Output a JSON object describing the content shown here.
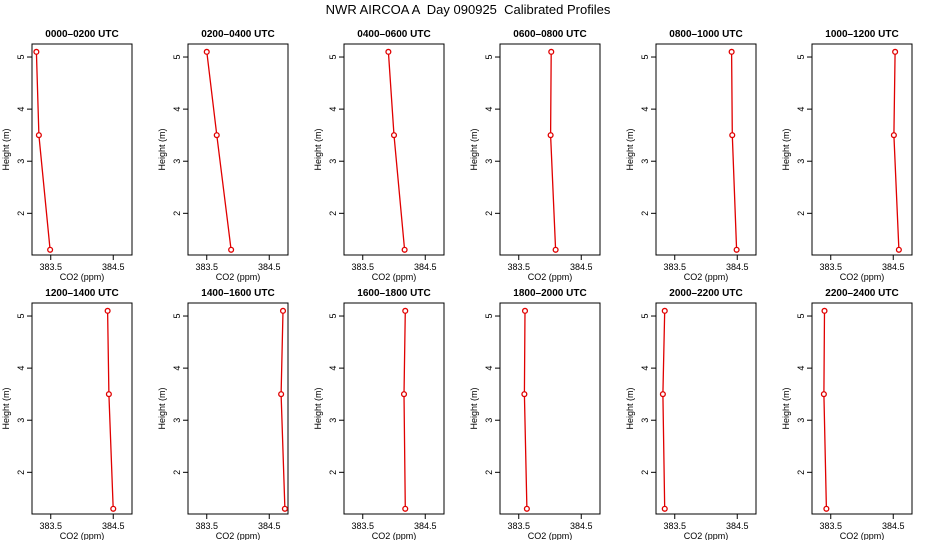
{
  "title": "NWR AIRCOA A  Day 090925  Calibrated Profiles",
  "chart_data": {
    "type": "line",
    "xlabel": "CO2 (ppm)",
    "ylabel": "Height (m)",
    "xlim": [
      383.2,
      384.8
    ],
    "ylim": [
      1.2,
      5.25
    ],
    "xticks": [
      383.5,
      384.5
    ],
    "yticks": [
      2,
      3,
      4,
      5
    ],
    "line_color": "#e00000",
    "panels": [
      {
        "title": "0000–0200 UTC",
        "x": [
          383.27,
          383.31,
          383.49
        ],
        "y": [
          5.1,
          3.5,
          1.3
        ]
      },
      {
        "title": "0200–0400 UTC",
        "x": [
          383.5,
          383.66,
          383.89
        ],
        "y": [
          5.1,
          3.5,
          1.3
        ]
      },
      {
        "title": "0400–0600 UTC",
        "x": [
          383.91,
          384.0,
          384.17
        ],
        "y": [
          5.1,
          3.5,
          1.3
        ]
      },
      {
        "title": "0600–0800 UTC",
        "x": [
          384.02,
          384.01,
          384.09
        ],
        "y": [
          5.1,
          3.5,
          1.3
        ]
      },
      {
        "title": "0800–1000 UTC",
        "x": [
          384.41,
          384.42,
          384.49
        ],
        "y": [
          5.1,
          3.5,
          1.3
        ]
      },
      {
        "title": "1000–1200 UTC",
        "x": [
          384.53,
          384.51,
          384.59
        ],
        "y": [
          5.1,
          3.5,
          1.3
        ]
      },
      {
        "title": "1200–1400 UTC",
        "x": [
          384.41,
          384.43,
          384.5
        ],
        "y": [
          5.1,
          3.5,
          1.3
        ]
      },
      {
        "title": "1400–1600 UTC",
        "x": [
          384.72,
          384.69,
          384.75
        ],
        "y": [
          5.1,
          3.5,
          1.3
        ]
      },
      {
        "title": "1600–1800 UTC",
        "x": [
          384.18,
          384.16,
          384.18
        ],
        "y": [
          5.1,
          3.5,
          1.3
        ]
      },
      {
        "title": "1800–2000 UTC",
        "x": [
          383.6,
          383.59,
          383.63
        ],
        "y": [
          5.1,
          3.5,
          1.3
        ]
      },
      {
        "title": "2000–2200 UTC",
        "x": [
          383.34,
          383.31,
          383.34
        ],
        "y": [
          5.1,
          3.5,
          1.3
        ]
      },
      {
        "title": "2200–2400 UTC",
        "x": [
          383.4,
          383.39,
          383.43
        ],
        "y": [
          5.1,
          3.5,
          1.3
        ]
      }
    ]
  }
}
